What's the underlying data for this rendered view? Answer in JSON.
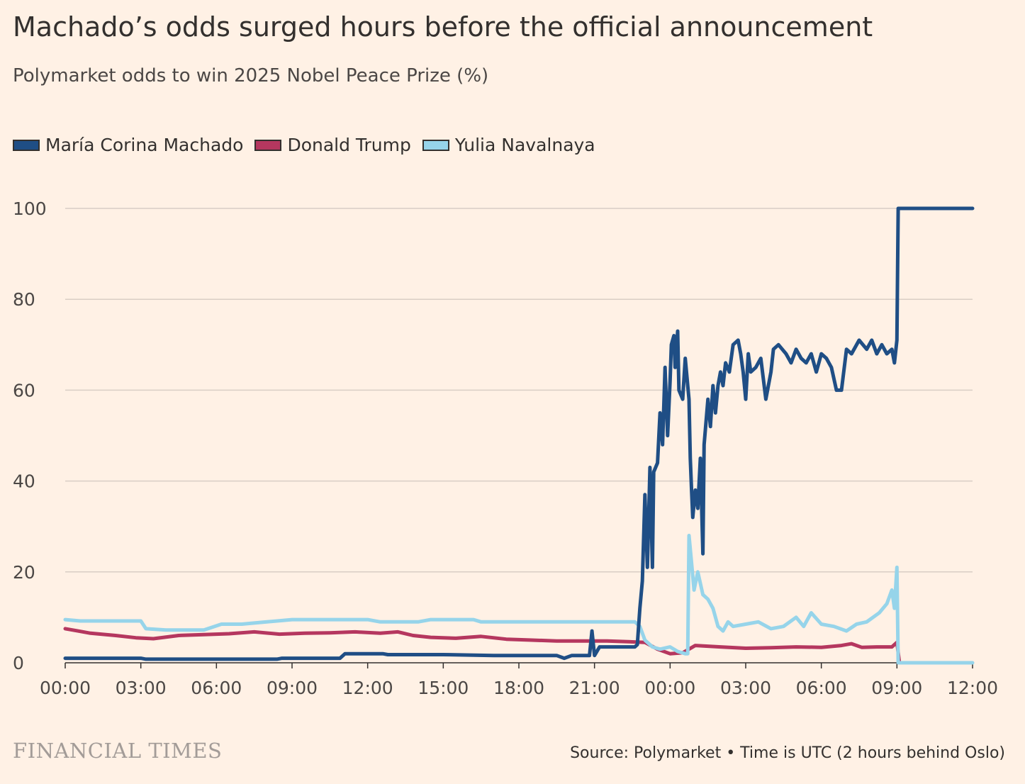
{
  "header": {
    "title": "Machado’s odds surged hours before the official announcement",
    "subtitle": "Polymarket odds to win 2025 Nobel Peace Prize (%)"
  },
  "footer": {
    "logo_text": "FINANCIAL TIMES",
    "source": "Source: Polymarket • Time is UTC (2 hours behind Oslo)"
  },
  "chart_data": {
    "type": "line",
    "title": "Machado’s odds surged hours before the official announcement",
    "subtitle": "Polymarket odds to win 2025 Nobel Peace Prize (%)",
    "xlabel": "Time is UTC",
    "ylabel": "%",
    "x_unit": "hours since 00:00 on day 1",
    "xlim": [
      0,
      36
    ],
    "ylim": [
      0,
      100
    ],
    "yticks": [
      {
        "value": 0,
        "label": "0"
      },
      {
        "value": 20,
        "label": "20"
      },
      {
        "value": 40,
        "label": "40"
      },
      {
        "value": 60,
        "label": "60"
      },
      {
        "value": 80,
        "label": "80"
      },
      {
        "value": 100,
        "label": "100"
      }
    ],
    "xticks": [
      {
        "value": 0,
        "label": "00:00"
      },
      {
        "value": 3,
        "label": "03:00"
      },
      {
        "value": 6,
        "label": "06:00"
      },
      {
        "value": 9,
        "label": "09:00"
      },
      {
        "value": 12,
        "label": "12:00"
      },
      {
        "value": 15,
        "label": "15:00"
      },
      {
        "value": 18,
        "label": "18:00"
      },
      {
        "value": 21,
        "label": "21:00"
      },
      {
        "value": 24,
        "label": "00:00"
      },
      {
        "value": 27,
        "label": "03:00"
      },
      {
        "value": 30,
        "label": "06:00"
      },
      {
        "value": 33,
        "label": "09:00"
      },
      {
        "value": 36,
        "label": "12:00"
      }
    ],
    "grid": true,
    "legend_position": "top-left",
    "series": [
      {
        "name": "María Corina Machado",
        "color": "#1f4e85",
        "points": [
          [
            0,
            1
          ],
          [
            3,
            1
          ],
          [
            3.2,
            0.8
          ],
          [
            6,
            0.8
          ],
          [
            8.4,
            0.8
          ],
          [
            8.6,
            1
          ],
          [
            10.9,
            1
          ],
          [
            11.1,
            2
          ],
          [
            12.6,
            2
          ],
          [
            12.8,
            1.8
          ],
          [
            15,
            1.8
          ],
          [
            17,
            1.6
          ],
          [
            19.5,
            1.6
          ],
          [
            19.8,
            1
          ],
          [
            20.1,
            1.6
          ],
          [
            20.8,
            1.6
          ],
          [
            20.9,
            7
          ],
          [
            21,
            1.6
          ],
          [
            21.2,
            3.5
          ],
          [
            22,
            3.5
          ],
          [
            22.6,
            3.5
          ],
          [
            22.7,
            4
          ],
          [
            22.8,
            12
          ],
          [
            22.9,
            18
          ],
          [
            23.0,
            37
          ],
          [
            23.1,
            21
          ],
          [
            23.2,
            43
          ],
          [
            23.3,
            21
          ],
          [
            23.35,
            42
          ],
          [
            23.5,
            44
          ],
          [
            23.6,
            55
          ],
          [
            23.7,
            48
          ],
          [
            23.8,
            65
          ],
          [
            23.9,
            50
          ],
          [
            24.0,
            62
          ],
          [
            24.05,
            70
          ],
          [
            24.15,
            72
          ],
          [
            24.2,
            65
          ],
          [
            24.3,
            73
          ],
          [
            24.35,
            60
          ],
          [
            24.5,
            58
          ],
          [
            24.6,
            67
          ],
          [
            24.7,
            61
          ],
          [
            24.75,
            58
          ],
          [
            24.8,
            45
          ],
          [
            24.85,
            38
          ],
          [
            24.9,
            32
          ],
          [
            25.0,
            38
          ],
          [
            25.1,
            34
          ],
          [
            25.2,
            45
          ],
          [
            25.3,
            24
          ],
          [
            25.35,
            48
          ],
          [
            25.5,
            58
          ],
          [
            25.6,
            52
          ],
          [
            25.7,
            61
          ],
          [
            25.8,
            55
          ],
          [
            25.9,
            61
          ],
          [
            26.0,
            64
          ],
          [
            26.1,
            61
          ],
          [
            26.2,
            66
          ],
          [
            26.35,
            64
          ],
          [
            26.5,
            70
          ],
          [
            26.7,
            71
          ],
          [
            26.8,
            68
          ],
          [
            26.9,
            64
          ],
          [
            27.0,
            58
          ],
          [
            27.1,
            68
          ],
          [
            27.2,
            64
          ],
          [
            27.4,
            65
          ],
          [
            27.6,
            67
          ],
          [
            27.8,
            58
          ],
          [
            28.0,
            64
          ],
          [
            28.1,
            69
          ],
          [
            28.3,
            70
          ],
          [
            28.6,
            68
          ],
          [
            28.8,
            66
          ],
          [
            29.0,
            69
          ],
          [
            29.2,
            67
          ],
          [
            29.4,
            66
          ],
          [
            29.6,
            68
          ],
          [
            29.8,
            64
          ],
          [
            30.0,
            68
          ],
          [
            30.2,
            67
          ],
          [
            30.4,
            65
          ],
          [
            30.6,
            60
          ],
          [
            30.8,
            60
          ],
          [
            31.0,
            69
          ],
          [
            31.2,
            68
          ],
          [
            31.5,
            71
          ],
          [
            31.8,
            69
          ],
          [
            32.0,
            71
          ],
          [
            32.2,
            68
          ],
          [
            32.4,
            70
          ],
          [
            32.6,
            68
          ],
          [
            32.8,
            69
          ],
          [
            32.9,
            66
          ],
          [
            33.0,
            71
          ],
          [
            33.05,
            100
          ],
          [
            34.5,
            100
          ],
          [
            36,
            100
          ]
        ]
      },
      {
        "name": "Donald Trump",
        "color": "#b5375f",
        "points": [
          [
            0,
            7.5
          ],
          [
            0.5,
            7
          ],
          [
            1,
            6.5
          ],
          [
            2,
            6
          ],
          [
            2.8,
            5.5
          ],
          [
            3.5,
            5.3
          ],
          [
            4.5,
            6
          ],
          [
            5.5,
            6.2
          ],
          [
            6.5,
            6.4
          ],
          [
            7.5,
            6.8
          ],
          [
            8.5,
            6.3
          ],
          [
            9.5,
            6.5
          ],
          [
            10.5,
            6.6
          ],
          [
            11.5,
            6.8
          ],
          [
            12.5,
            6.5
          ],
          [
            13.2,
            6.8
          ],
          [
            13.8,
            6
          ],
          [
            14.5,
            5.6
          ],
          [
            15.5,
            5.4
          ],
          [
            16.5,
            5.8
          ],
          [
            17.5,
            5.2
          ],
          [
            18.5,
            5
          ],
          [
            19.5,
            4.8
          ],
          [
            20.5,
            4.8
          ],
          [
            21.5,
            4.8
          ],
          [
            22.5,
            4.6
          ],
          [
            23.0,
            4.5
          ],
          [
            23.5,
            3
          ],
          [
            24.0,
            2
          ],
          [
            24.5,
            2.2
          ],
          [
            25.0,
            3.8
          ],
          [
            26.0,
            3.5
          ],
          [
            27.0,
            3.2
          ],
          [
            28.0,
            3.3
          ],
          [
            29.0,
            3.5
          ],
          [
            30.0,
            3.4
          ],
          [
            30.8,
            3.8
          ],
          [
            31.2,
            4.2
          ],
          [
            31.6,
            3.4
          ],
          [
            32.2,
            3.5
          ],
          [
            32.8,
            3.5
          ],
          [
            33.0,
            4.5
          ],
          [
            33.1,
            0
          ]
        ]
      },
      {
        "name": "Yulia Navalnaya",
        "color": "#96d4ea",
        "points": [
          [
            0,
            9.5
          ],
          [
            0.6,
            9.2
          ],
          [
            3,
            9.2
          ],
          [
            3.2,
            7.5
          ],
          [
            4,
            7.2
          ],
          [
            5.5,
            7.2
          ],
          [
            6.2,
            8.5
          ],
          [
            7,
            8.5
          ],
          [
            8,
            9
          ],
          [
            9,
            9.5
          ],
          [
            12,
            9.5
          ],
          [
            12.5,
            9
          ],
          [
            14,
            9
          ],
          [
            14.5,
            9.5
          ],
          [
            16.2,
            9.5
          ],
          [
            16.5,
            9
          ],
          [
            18,
            9
          ],
          [
            19.5,
            9
          ],
          [
            20.5,
            9
          ],
          [
            21.5,
            9
          ],
          [
            22.3,
            9
          ],
          [
            22.6,
            9
          ],
          [
            22.8,
            8
          ],
          [
            23.0,
            5
          ],
          [
            23.3,
            3.5
          ],
          [
            23.6,
            3
          ],
          [
            24.0,
            3.5
          ],
          [
            24.3,
            2.5
          ],
          [
            24.6,
            2
          ],
          [
            24.7,
            2
          ],
          [
            24.75,
            28
          ],
          [
            24.85,
            22
          ],
          [
            24.95,
            16
          ],
          [
            25.1,
            20
          ],
          [
            25.3,
            15
          ],
          [
            25.5,
            14
          ],
          [
            25.7,
            12
          ],
          [
            25.9,
            8
          ],
          [
            26.1,
            7
          ],
          [
            26.3,
            9
          ],
          [
            26.5,
            8
          ],
          [
            27.0,
            8.5
          ],
          [
            27.5,
            9
          ],
          [
            28.0,
            7.5
          ],
          [
            28.5,
            8
          ],
          [
            29.0,
            10
          ],
          [
            29.3,
            8
          ],
          [
            29.6,
            11
          ],
          [
            30.0,
            8.5
          ],
          [
            30.5,
            8
          ],
          [
            31.0,
            7
          ],
          [
            31.4,
            8.5
          ],
          [
            31.8,
            9
          ],
          [
            32.3,
            11
          ],
          [
            32.6,
            13
          ],
          [
            32.8,
            16
          ],
          [
            32.9,
            12
          ],
          [
            33.0,
            21
          ],
          [
            33.05,
            0
          ],
          [
            34.5,
            0
          ],
          [
            36,
            0
          ]
        ]
      }
    ]
  }
}
